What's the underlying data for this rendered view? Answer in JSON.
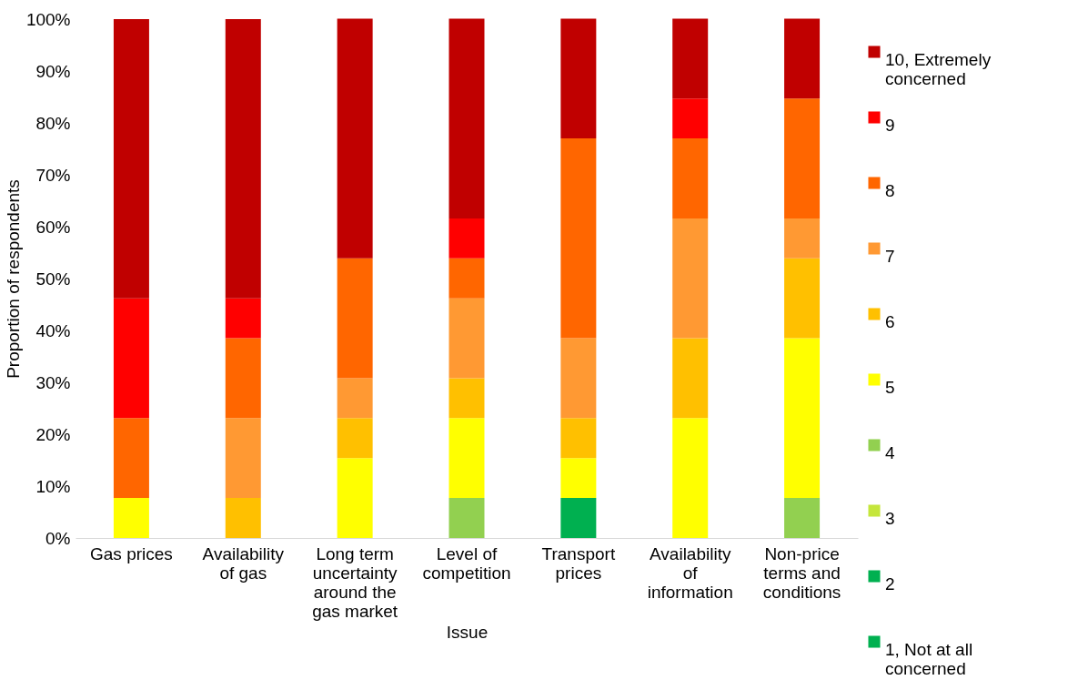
{
  "chart_data": {
    "type": "bar",
    "stacked": true,
    "xlabel": "Issue",
    "ylabel": "Proportion of respondents",
    "categories": [
      "Gas prices",
      "Availability of gas",
      "Long term uncertainty around the gas market",
      "Level of competition",
      "Transport prices",
      "Availability of information",
      "Non-price terms and conditions"
    ],
    "series": [
      {
        "name": "1, Not at all concerned",
        "color": "#00b050",
        "values": [
          0,
          0,
          0,
          0,
          0,
          0,
          0
        ]
      },
      {
        "name": "2",
        "color": "#00b050",
        "values": [
          0,
          0,
          0,
          0,
          7.7,
          0,
          0
        ]
      },
      {
        "name": "3",
        "color": "#c5e63c",
        "values": [
          0,
          0,
          0,
          0,
          0,
          0,
          0
        ]
      },
      {
        "name": "4",
        "color": "#92d050",
        "values": [
          0,
          0,
          0,
          7.7,
          0,
          0,
          7.7
        ]
      },
      {
        "name": "5",
        "color": "#ffff00",
        "values": [
          7.7,
          0,
          15.4,
          15.4,
          7.7,
          23.1,
          30.8
        ]
      },
      {
        "name": "6",
        "color": "#ffc000",
        "values": [
          0,
          7.7,
          7.7,
          7.7,
          7.7,
          15.4,
          15.4
        ]
      },
      {
        "name": "7",
        "color": "#ff9933",
        "values": [
          0,
          15.4,
          7.7,
          15.4,
          15.4,
          23.1,
          7.7
        ]
      },
      {
        "name": "8",
        "color": "#ff6600",
        "values": [
          15.4,
          15.4,
          23.1,
          7.7,
          38.5,
          15.4,
          23.1
        ]
      },
      {
        "name": "9",
        "color": "#ff0000",
        "values": [
          23.1,
          7.7,
          0,
          7.7,
          0,
          7.7,
          0
        ]
      },
      {
        "name": "10, Extremely concerned",
        "color": "#c00000",
        "values": [
          53.8,
          53.8,
          46.2,
          38.5,
          23.1,
          15.4,
          15.4
        ]
      }
    ],
    "ylim": [
      0,
      100
    ],
    "yticks": [
      {
        "value": 0,
        "label": "0%"
      },
      {
        "value": 10,
        "label": "10%"
      },
      {
        "value": 20,
        "label": "20%"
      },
      {
        "value": 30,
        "label": "30%"
      },
      {
        "value": 40,
        "label": "40%"
      },
      {
        "value": 50,
        "label": "50%"
      },
      {
        "value": 60,
        "label": "60%"
      },
      {
        "value": 70,
        "label": "70%"
      },
      {
        "value": 80,
        "label": "80%"
      },
      {
        "value": 90,
        "label": "90%"
      },
      {
        "value": 100,
        "label": "100%"
      }
    ],
    "grid": false,
    "legend": "right"
  }
}
